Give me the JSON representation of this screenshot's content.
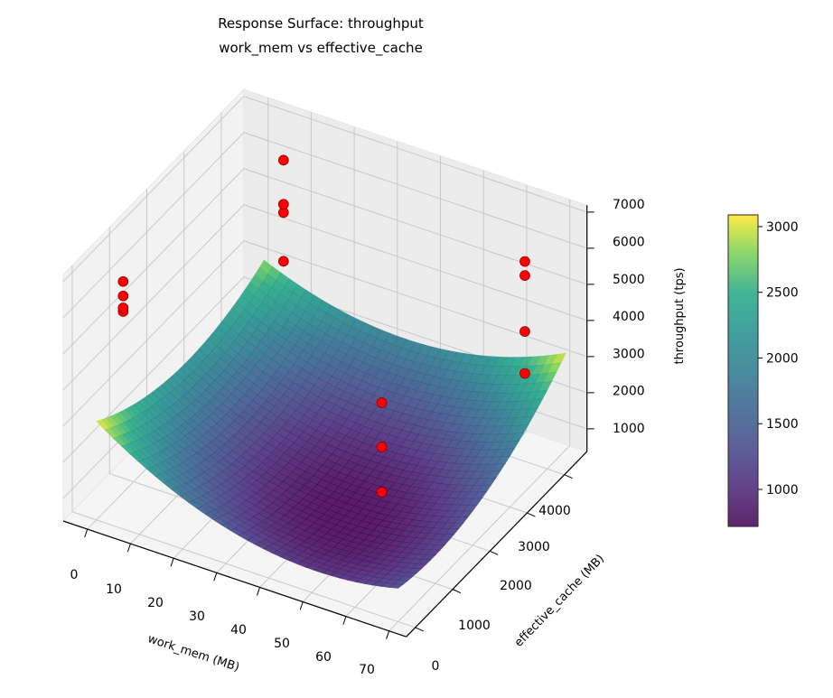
{
  "chart_data": {
    "type": "surface3d",
    "title": "Response Surface: throughput",
    "subtitle": "work_mem vs effective_cache",
    "xlabel": "work_mem (MB)",
    "ylabel": "effective_cache (MB)",
    "zlabel": "throughput (tps)",
    "xlim": [
      -5.6,
      74
    ],
    "ylim": [
      -242,
      4606
    ],
    "zlim": [
      370,
      7190
    ],
    "x_ticks": [
      "0",
      "10",
      "20",
      "30",
      "40",
      "50",
      "60",
      "70"
    ],
    "y_ticks": [
      "0",
      "1000",
      "2000",
      "3000",
      "4000"
    ],
    "z_ticks": [
      "1000",
      "2000",
      "3000",
      "4000",
      "5000",
      "6000",
      "7000"
    ],
    "colormap": "viridis",
    "grid": true,
    "surface": {
      "model": "quadratic fit",
      "x_range": [
        0,
        70
      ],
      "y_range": [
        0,
        4500
      ],
      "min_value": 700,
      "min_at": [
        45,
        1500
      ],
      "corner_values": {
        "x0_y0": 3100,
        "x0_y4500": 2800,
        "x70_y4500": 2500,
        "x70_y0": 1300
      }
    },
    "scatter": {
      "color": "#ff0000",
      "points": [
        [
          4,
          256,
          6030
        ],
        [
          4,
          256,
          6130
        ],
        [
          4,
          256,
          6460
        ],
        [
          4,
          256,
          6860
        ],
        [
          8,
          4096,
          3520
        ],
        [
          8,
          4096,
          4870
        ],
        [
          8,
          4096,
          5100
        ],
        [
          8,
          4096,
          6320
        ],
        [
          64,
          4096,
          2670
        ],
        [
          64,
          4096,
          3830
        ],
        [
          64,
          4096,
          5380
        ],
        [
          64,
          4096,
          5770
        ],
        [
          64,
          256,
          3445
        ],
        [
          64,
          256,
          4695
        ],
        [
          64,
          256,
          5920
        ]
      ]
    },
    "colorbar": {
      "range": [
        718,
        3089
      ],
      "ticks": [
        "1000",
        "1500",
        "2000",
        "2500",
        "3000"
      ]
    }
  }
}
